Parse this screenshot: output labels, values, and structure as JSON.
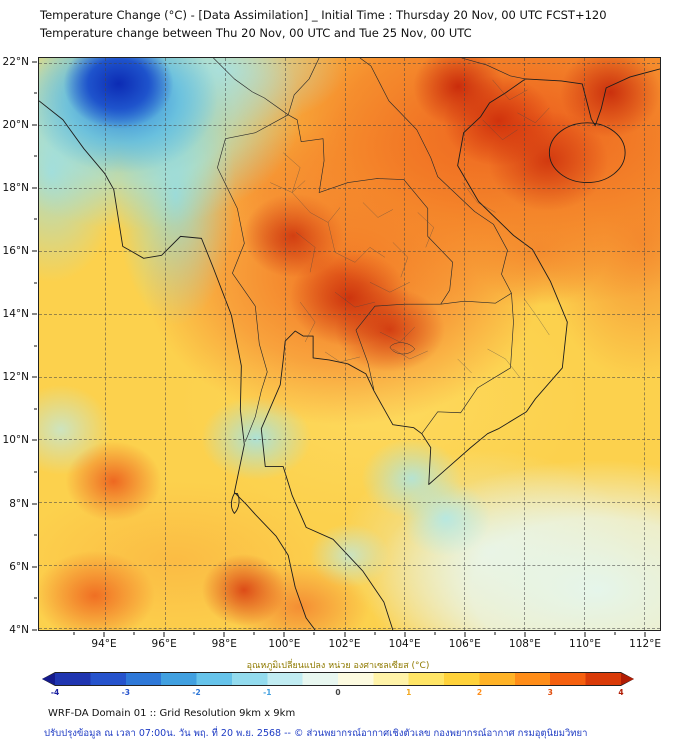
{
  "header": {
    "line1": "Temperature Change (°C) - [Data Assimilation] _ Initial Time : Thursday 20 Nov, 00 UTC FCST+120",
    "line2": "Temperature change between Thu 20 Nov, 00 UTC and Tue 25 Nov, 00 UTC"
  },
  "map": {
    "lat_labels": [
      "22°N",
      "20°N",
      "18°N",
      "16°N",
      "14°N",
      "12°N",
      "10°N",
      "8°N",
      "6°N",
      "4°N"
    ],
    "lon_labels": [
      "94°E",
      "96°E",
      "98°E",
      "100°E",
      "102°E",
      "104°E",
      "106°E",
      "108°E",
      "110°E",
      "112°E"
    ]
  },
  "colorbar": {
    "label": "อุณหภูมิเปลี่ยนแปลง หน่วย องศาเซลเซียส (°C)",
    "ticks": [
      "-4",
      "-3",
      "-2",
      "-1",
      "0",
      "1",
      "2",
      "3",
      "4"
    ],
    "tick_colors": [
      "#1a20a0",
      "#2653cc",
      "#2e78d8",
      "#41a0e0",
      "#444444",
      "#f2a81f",
      "#ff8d18",
      "#e04b0a",
      "#b01c04"
    ],
    "stops": [
      "#141a8c",
      "#1f35b0",
      "#2653cc",
      "#2e78d8",
      "#41a0e0",
      "#66c3ea",
      "#93dbee",
      "#c1ecf2",
      "#e8f7f0",
      "#fdfbe0",
      "#fff3a8",
      "#ffe566",
      "#ffd23a",
      "#ffb327",
      "#ff8d18",
      "#f5600f",
      "#d93a08",
      "#b01c04"
    ]
  },
  "footer": {
    "line1": "WRF-DA Domain 01 :: Grid Resolution 9km x 9km",
    "line2": "ปรับปรุงข้อมูล ณ เวลา 07:00น. วัน พฤ. ที่ 20 พ.ย. 2568 -- © ส่วนพยากรณ์อากาศเชิงตัวเลข กองพยากรณ์อากาศ กรมอุตุนิยมวิทยา"
  }
}
